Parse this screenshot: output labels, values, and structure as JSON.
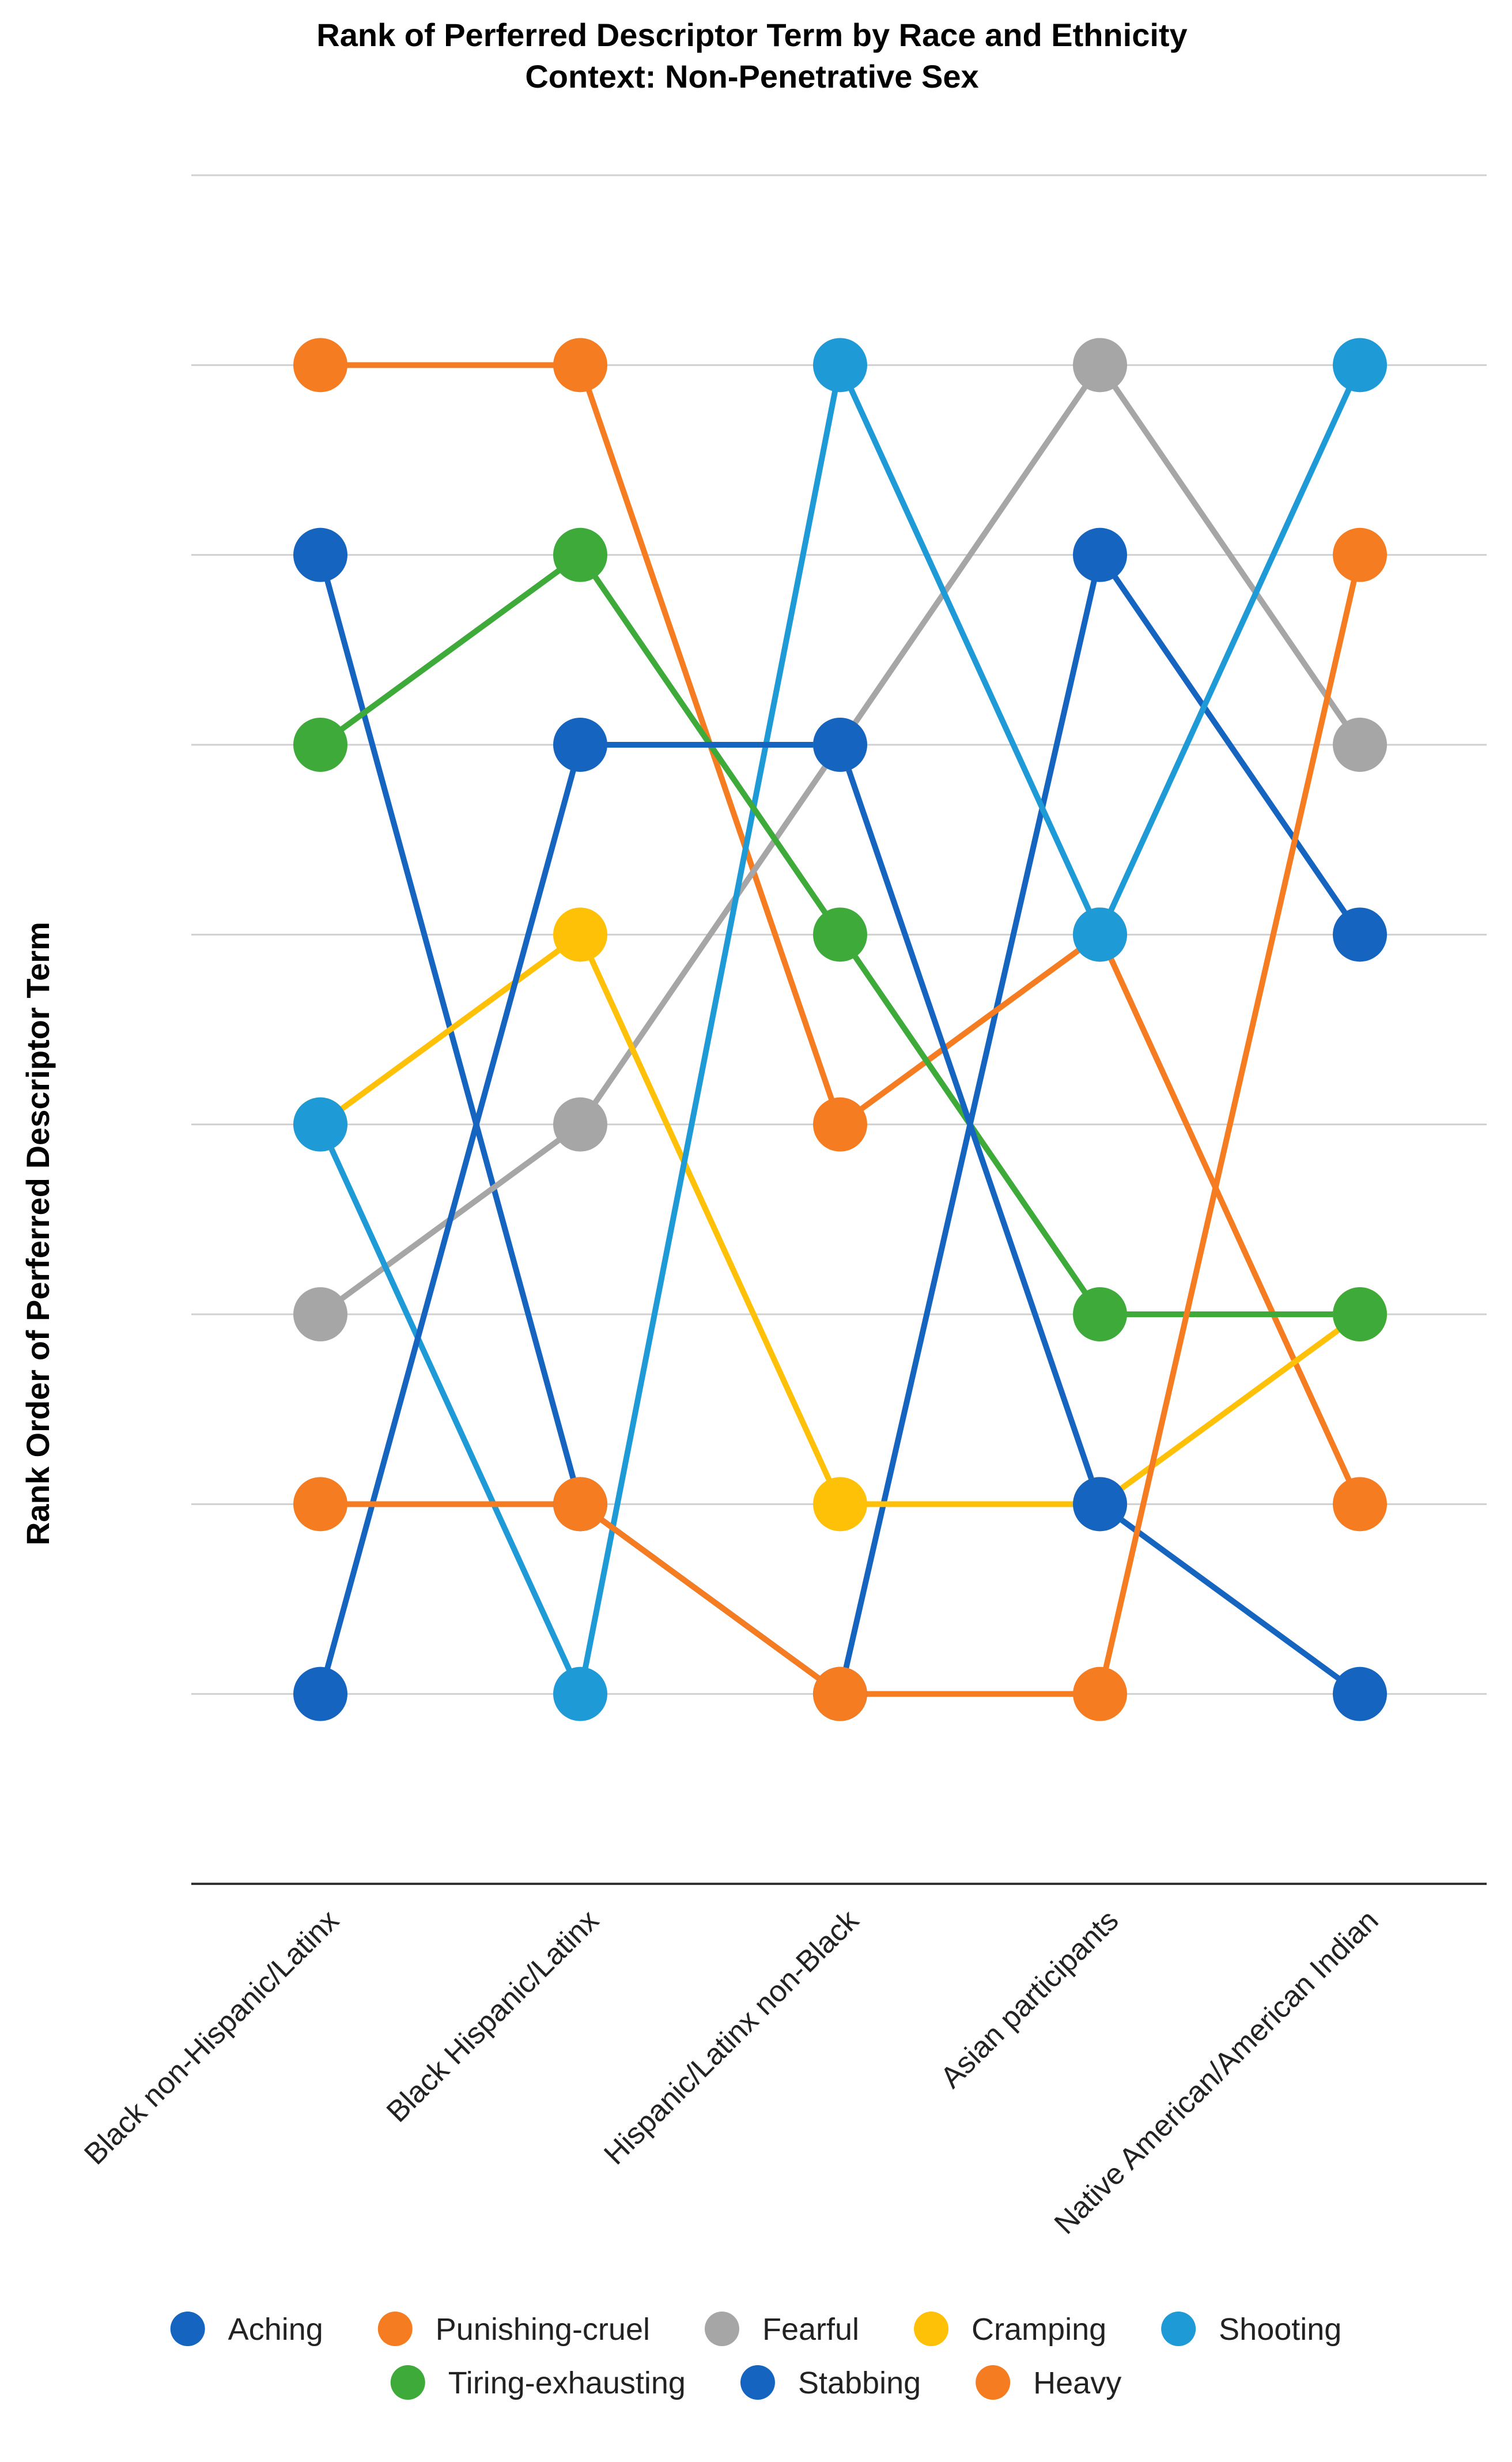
{
  "chart_data": {
    "type": "line",
    "title": "Rank of Perferred Descriptor Term by Race and Ethnicity",
    "subtitle": "Context: Non-Penetrative Sex",
    "xlabel": "",
    "ylabel": "Rank Order of Perferred Descriptor Term",
    "categories": [
      "Black non-Hispanic/Latinx",
      "Black Hispanic/Latinx",
      "Hispanic/Latinx non-Black",
      "Asian participants",
      "Native American/American Indian"
    ],
    "ylim": [
      0,
      9
    ],
    "y_inverted": true,
    "grid": true,
    "legend_position": "bottom",
    "series": [
      {
        "name": "Aching",
        "color": "#1565C0",
        "values": [
          2,
          7,
          8,
          2,
          4
        ]
      },
      {
        "name": "Punishing-cruel",
        "color": "#F57C20",
        "values": [
          1,
          1,
          5,
          4,
          7
        ]
      },
      {
        "name": "Fearful",
        "color": "#A6A6A6",
        "values": [
          6,
          5,
          3,
          1,
          3
        ]
      },
      {
        "name": "Cramping",
        "color": "#FFC107",
        "values": [
          5,
          4,
          7,
          7,
          6
        ]
      },
      {
        "name": "Shooting",
        "color": "#1E9BD7",
        "values": [
          5,
          8,
          1,
          4,
          1
        ]
      },
      {
        "name": "Tiring-exhausting",
        "color": "#3DAA3A",
        "values": [
          3,
          2,
          4,
          6,
          6
        ]
      },
      {
        "name": "Stabbing",
        "color": "#1565C0",
        "values": [
          8,
          3,
          3,
          7,
          8
        ]
      },
      {
        "name": "Heavy",
        "color": "#F57C20",
        "values": [
          7,
          7,
          8,
          8,
          2
        ]
      }
    ]
  }
}
